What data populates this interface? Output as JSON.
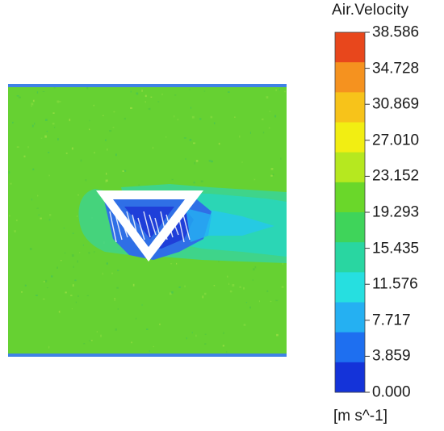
{
  "legend": {
    "title": "Air.Velocity",
    "units": "[m s^-1]",
    "ticks": [
      "38.586",
      "34.728",
      "30.869",
      "27.010",
      "23.152",
      "19.293",
      "15.435",
      "11.576",
      "7.717",
      "3.859",
      "0.000"
    ],
    "bands": [
      "#e8471c",
      "#f5921f",
      "#f7c31a",
      "#f2ee12",
      "#b6e81f",
      "#6ad72a",
      "#3fd45a",
      "#29d6a1",
      "#26dfe0",
      "#25b0f2",
      "#1e6ff0",
      "#1433d9"
    ]
  },
  "field": {
    "background_color": "#66d132",
    "wall_color": "#3f82e6",
    "obstacle_color": "#ffffff",
    "wake_colors": [
      "#3fd48a",
      "#2bd6b5",
      "#26c9e8"
    ],
    "recirculation_colors": [
      "#2f6fe6",
      "#1f3fd9",
      "#25b0f2"
    ]
  }
}
